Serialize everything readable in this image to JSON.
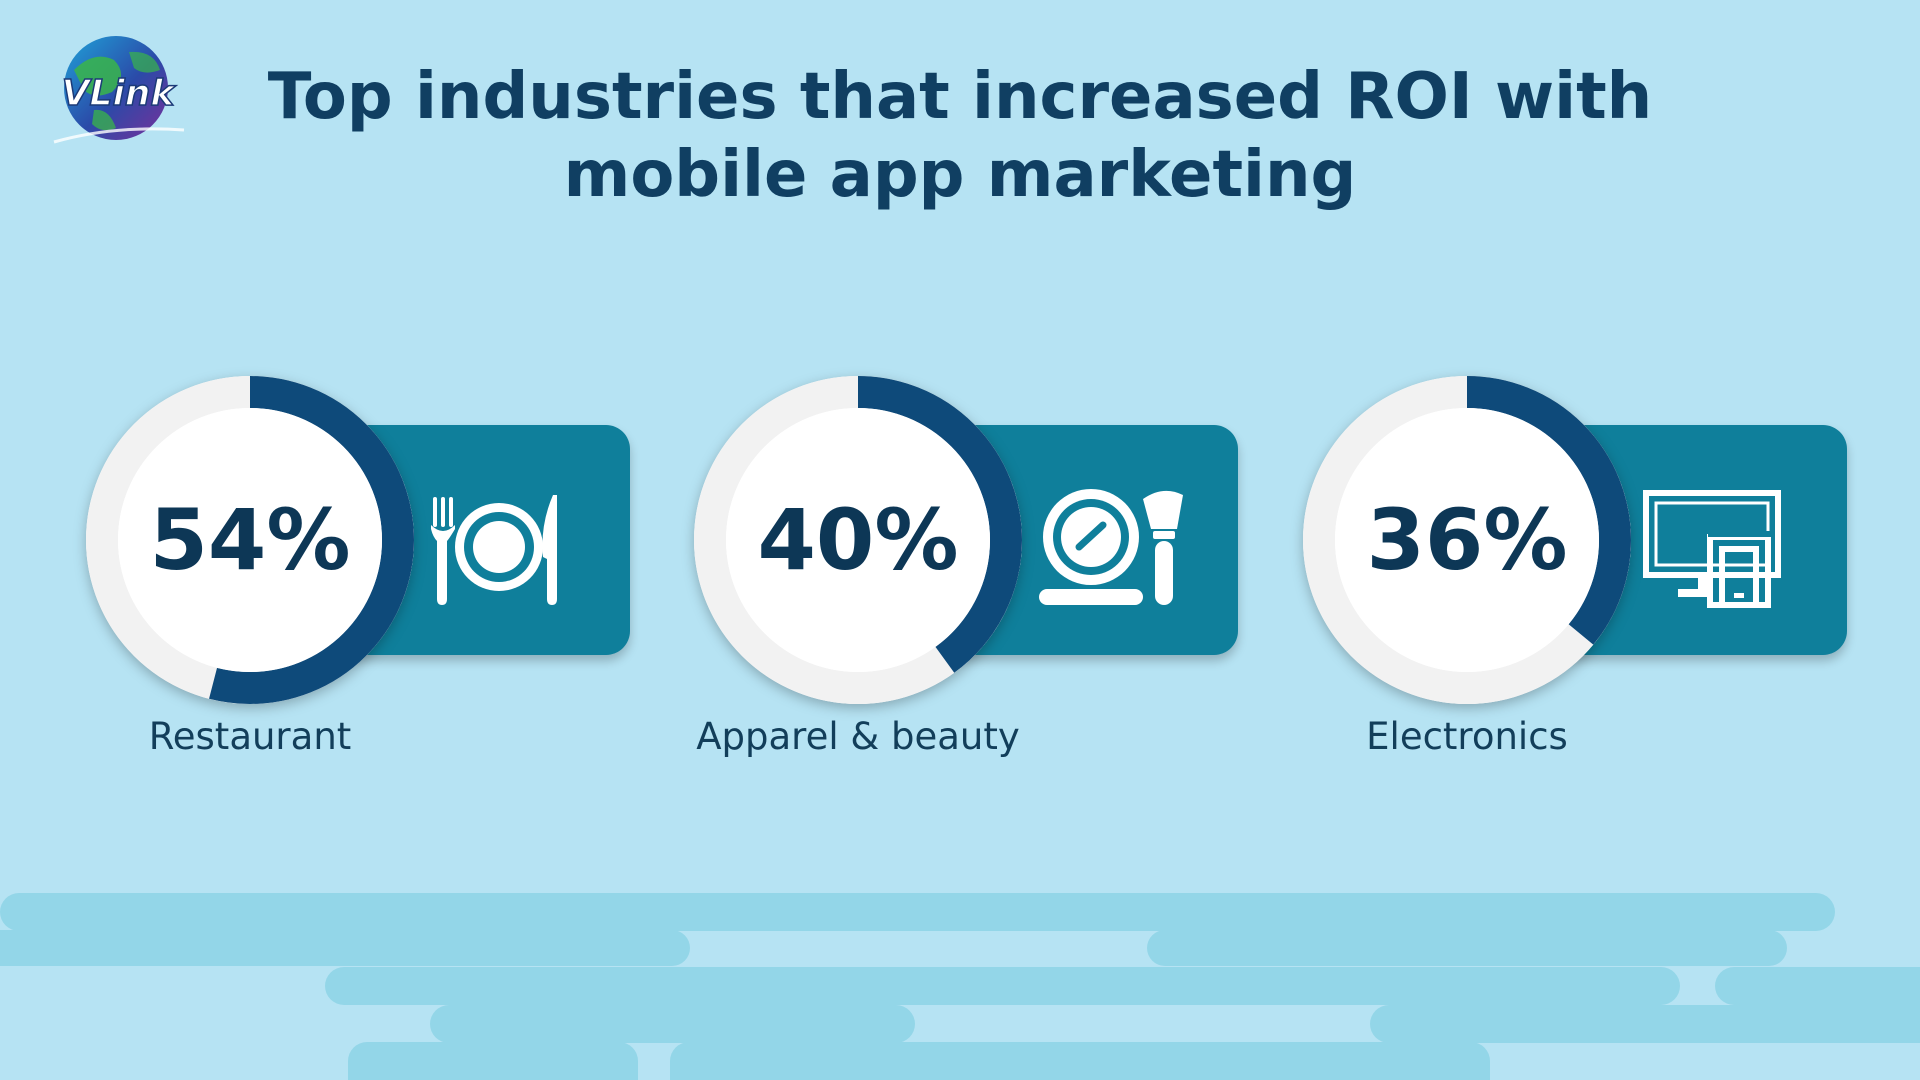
{
  "logo": {
    "text": "VLink"
  },
  "title": {
    "line1": "Top industries that increased ROI with",
    "line2": "mobile app marketing"
  },
  "colors": {
    "background": "#b6e3f3",
    "title": "#103f62",
    "ring_fill": "#0e4a7a",
    "ring_track": "#f2f2f2",
    "tab": "#0f7f9b",
    "wave": "#93d6e8"
  },
  "chart_data": {
    "type": "donut",
    "categories": [
      "Restaurant",
      "Apparel & beauty",
      "Electronics"
    ],
    "values": [
      54,
      40,
      36
    ],
    "value_labels": [
      "54%",
      "40%",
      "36%"
    ],
    "icons": [
      "dining-icon",
      "cosmetics-icon",
      "devices-icon"
    ],
    "title": "Top industries that increased ROI with mobile app marketing"
  }
}
